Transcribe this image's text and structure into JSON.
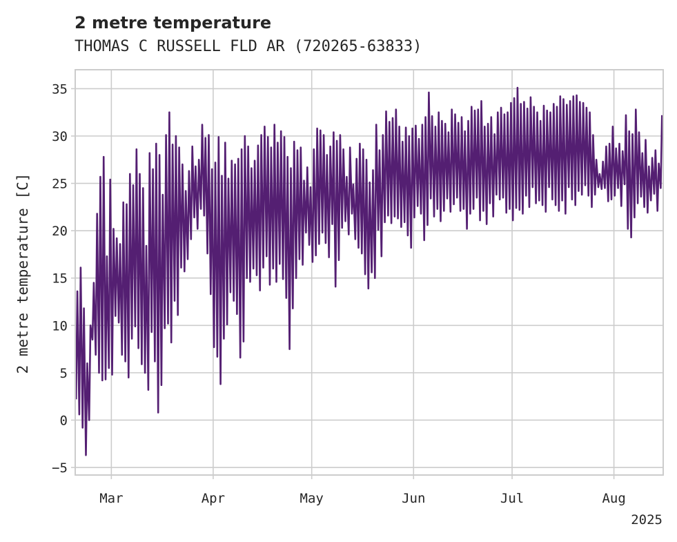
{
  "chart_data": {
    "type": "line",
    "title": "2 metre temperature",
    "subtitle": "THOMAS C RUSSELL FLD AR (720265-63833)",
    "ylabel": "2 metre temperature [C]",
    "xlabel": "",
    "year_label": "2025",
    "ylim": [
      -5.8,
      37
    ],
    "xlim": [
      "2025-02-18",
      "2025-08-16"
    ],
    "yticks": [
      -5,
      0,
      5,
      10,
      15,
      20,
      25,
      30,
      35
    ],
    "xticks": [
      {
        "date": "2025-03-01",
        "label": "Mar"
      },
      {
        "date": "2025-04-01",
        "label": "Apr"
      },
      {
        "date": "2025-05-01",
        "label": "May"
      },
      {
        "date": "2025-06-01",
        "label": "Jun"
      },
      {
        "date": "2025-07-01",
        "label": "Jul"
      },
      {
        "date": "2025-08-01",
        "label": "Aug"
      }
    ],
    "grid": true,
    "series": [
      {
        "color": "#541f72",
        "x": [
          "2025-02-18",
          "2025-02-19",
          "2025-02-20",
          "2025-02-21",
          "2025-02-22",
          "2025-02-23",
          "2025-02-24",
          "2025-02-25",
          "2025-02-26",
          "2025-02-27",
          "2025-02-28",
          "2025-03-01",
          "2025-03-02",
          "2025-03-03",
          "2025-03-04",
          "2025-03-05",
          "2025-03-06",
          "2025-03-07",
          "2025-03-08",
          "2025-03-09",
          "2025-03-10",
          "2025-03-11",
          "2025-03-12",
          "2025-03-13",
          "2025-03-14",
          "2025-03-15",
          "2025-03-16",
          "2025-03-17",
          "2025-03-18",
          "2025-03-19",
          "2025-03-20",
          "2025-03-21",
          "2025-03-22",
          "2025-03-23",
          "2025-03-24",
          "2025-03-25",
          "2025-03-26",
          "2025-03-27",
          "2025-03-28",
          "2025-03-29",
          "2025-03-30",
          "2025-03-31",
          "2025-04-01",
          "2025-04-02",
          "2025-04-03",
          "2025-04-04",
          "2025-04-05",
          "2025-04-06",
          "2025-04-07",
          "2025-04-08",
          "2025-04-09",
          "2025-04-10",
          "2025-04-11",
          "2025-04-12",
          "2025-04-13",
          "2025-04-14",
          "2025-04-15",
          "2025-04-16",
          "2025-04-17",
          "2025-04-18",
          "2025-04-19",
          "2025-04-20",
          "2025-04-21",
          "2025-04-22",
          "2025-04-23",
          "2025-04-24",
          "2025-04-25",
          "2025-04-26",
          "2025-04-27",
          "2025-04-28",
          "2025-04-29",
          "2025-04-30",
          "2025-05-01",
          "2025-05-02",
          "2025-05-03",
          "2025-05-04",
          "2025-05-05",
          "2025-05-06",
          "2025-05-07",
          "2025-05-08",
          "2025-05-09",
          "2025-05-10",
          "2025-05-11",
          "2025-05-12",
          "2025-05-13",
          "2025-05-14",
          "2025-05-15",
          "2025-05-16",
          "2025-05-17",
          "2025-05-18",
          "2025-05-19",
          "2025-05-20",
          "2025-05-21",
          "2025-05-22",
          "2025-05-23",
          "2025-05-24",
          "2025-05-25",
          "2025-05-26",
          "2025-05-27",
          "2025-05-28",
          "2025-05-29",
          "2025-05-30",
          "2025-05-31",
          "2025-06-01",
          "2025-06-02",
          "2025-06-03",
          "2025-06-04",
          "2025-06-05",
          "2025-06-06",
          "2025-06-07",
          "2025-06-08",
          "2025-06-09",
          "2025-06-10",
          "2025-06-11",
          "2025-06-12",
          "2025-06-13",
          "2025-06-14",
          "2025-06-15",
          "2025-06-16",
          "2025-06-17",
          "2025-06-18",
          "2025-06-19",
          "2025-06-20",
          "2025-06-21",
          "2025-06-22",
          "2025-06-23",
          "2025-06-24",
          "2025-06-25",
          "2025-06-26",
          "2025-06-27",
          "2025-06-28",
          "2025-06-29",
          "2025-06-30",
          "2025-07-01",
          "2025-07-02",
          "2025-07-03",
          "2025-07-04",
          "2025-07-05",
          "2025-07-06",
          "2025-07-07",
          "2025-07-08",
          "2025-07-09",
          "2025-07-10",
          "2025-07-11",
          "2025-07-12",
          "2025-07-13",
          "2025-07-14",
          "2025-07-15",
          "2025-07-16",
          "2025-07-17",
          "2025-07-18",
          "2025-07-19",
          "2025-07-20",
          "2025-07-21",
          "2025-07-22",
          "2025-07-23",
          "2025-07-24",
          "2025-07-25",
          "2025-07-26",
          "2025-07-27",
          "2025-07-28",
          "2025-07-29",
          "2025-07-30",
          "2025-07-31",
          "2025-08-01",
          "2025-08-02",
          "2025-08-03",
          "2025-08-04",
          "2025-08-05",
          "2025-08-06",
          "2025-08-07",
          "2025-08-08",
          "2025-08-09",
          "2025-08-10",
          "2025-08-11",
          "2025-08-12",
          "2025-08-13",
          "2025-08-14",
          "2025-08-15"
        ],
        "min": [
          2.2,
          0.6,
          -0.8,
          -3.7,
          0.0,
          8.5,
          6.9,
          5.0,
          4.2,
          4.3,
          5.5,
          4.8,
          11.0,
          10.3,
          6.9,
          6.2,
          4.5,
          8.6,
          9.9,
          7.6,
          5.9,
          5.0,
          3.2,
          9.3,
          6.2,
          0.8,
          3.7,
          9.7,
          10.2,
          8.2,
          12.6,
          11.1,
          16.1,
          15.7,
          17.0,
          19.1,
          21.4,
          20.2,
          22.3,
          21.6,
          17.6,
          13.3,
          7.7,
          6.7,
          3.8,
          8.6,
          10.1,
          13.5,
          12.6,
          11.2,
          6.6,
          8.3,
          15.0,
          14.6,
          16.0,
          15.3,
          13.7,
          16.1,
          17.3,
          14.3,
          16.0,
          14.6,
          16.5,
          14.9,
          12.9,
          7.5,
          11.8,
          15.0,
          17.0,
          16.4,
          19.8,
          18.5,
          16.7,
          17.4,
          18.6,
          19.8,
          18.7,
          17.2,
          20.7,
          14.1,
          16.9,
          20.3,
          21.0,
          19.6,
          21.8,
          19.1,
          18.2,
          17.6,
          15.4,
          13.9,
          15.6,
          15.0,
          20.1,
          17.3,
          20.9,
          21.6,
          20.8,
          21.5,
          21.3,
          20.4,
          20.9,
          19.5,
          18.2,
          21.4,
          22.6,
          21.8,
          19.0,
          20.6,
          23.4,
          21.5,
          22.3,
          21.0,
          22.1,
          23.4,
          22.0,
          22.8,
          23.5,
          22.1,
          22.3,
          20.2,
          21.8,
          22.3,
          23.5,
          21.1,
          22.1,
          20.7,
          22.9,
          21.5,
          23.8,
          23.3,
          23.5,
          21.9,
          22.3,
          21.1,
          22.4,
          22.2,
          21.8,
          23.7,
          22.5,
          24.6,
          22.9,
          23.2,
          22.7,
          22.0,
          24.6,
          23.3,
          22.7,
          22.1,
          23.2,
          21.8,
          24.6,
          23.3,
          22.7,
          24.2,
          23.8,
          24.8,
          23.7,
          22.5,
          23.8,
          24.6,
          24.4,
          24.5,
          23.1,
          23.3,
          23.7,
          24.5,
          22.6,
          24.9,
          20.2,
          19.3,
          21.4,
          22.9,
          23.6,
          22.5,
          21.9,
          23.2,
          23.9,
          22.1,
          24.5
        ],
        "max": [
          13.6,
          16.1,
          11.8,
          6.0,
          10.0,
          14.5,
          21.8,
          25.7,
          27.8,
          17.3,
          25.4,
          20.2,
          19.2,
          18.6,
          23.0,
          22.8,
          26.0,
          24.8,
          28.6,
          26.0,
          24.5,
          18.4,
          28.2,
          26.5,
          29.2,
          28.0,
          23.8,
          30.1,
          32.5,
          29.1,
          30.0,
          28.8,
          27.0,
          24.2,
          26.3,
          28.9,
          26.8,
          27.5,
          31.2,
          29.8,
          30.1,
          26.5,
          27.2,
          29.9,
          25.8,
          29.3,
          25.5,
          27.4,
          27.0,
          27.6,
          28.6,
          30.0,
          28.9,
          26.6,
          27.4,
          29.0,
          30.1,
          31.0,
          29.9,
          28.8,
          31.2,
          29.3,
          30.5,
          29.9,
          27.8,
          26.6,
          29.4,
          28.5,
          28.8,
          25.3,
          26.7,
          24.6,
          28.6,
          30.8,
          30.6,
          30.1,
          28.0,
          28.9,
          30.4,
          29.5,
          30.1,
          28.6,
          25.7,
          28.8,
          24.9,
          27.6,
          29.2,
          28.6,
          27.5,
          25.1,
          26.4,
          31.2,
          28.5,
          30.1,
          32.6,
          31.5,
          31.9,
          32.8,
          31.0,
          29.4,
          30.9,
          30.0,
          30.8,
          31.1,
          29.7,
          31.2,
          32.0,
          34.6,
          32.1,
          31.0,
          32.5,
          31.6,
          31.3,
          30.4,
          32.8,
          32.3,
          31.4,
          32.0,
          30.5,
          31.6,
          33.1,
          32.7,
          32.8,
          33.7,
          31.0,
          31.3,
          32.0,
          30.2,
          32.5,
          33.0,
          32.3,
          32.5,
          33.5,
          34.0,
          35.1,
          33.4,
          33.6,
          32.9,
          34.1,
          33.1,
          32.5,
          31.6,
          33.2,
          32.7,
          32.5,
          33.4,
          33.1,
          34.2,
          33.9,
          33.3,
          33.7,
          34.2,
          34.3,
          33.6,
          33.5,
          33.0,
          32.5,
          30.1,
          27.5,
          26.0,
          27.3,
          28.9,
          29.2,
          31.0,
          28.7,
          29.2,
          28.4,
          32.2,
          30.5,
          30.2,
          32.8,
          30.4,
          28.2,
          29.6,
          26.8,
          27.7,
          28.5,
          27.1,
          32.2
        ]
      }
    ]
  }
}
